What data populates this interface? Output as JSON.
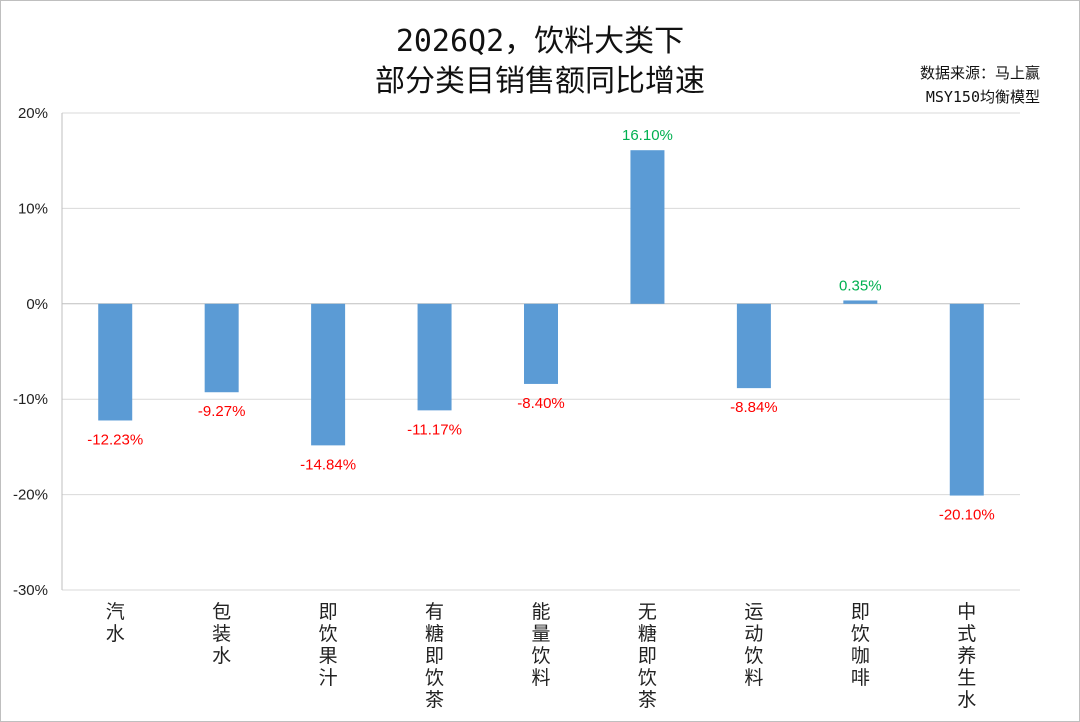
{
  "chart_data": {
    "type": "bar",
    "title_line1": "2026Q2，饮料大类下",
    "title_line2": "部分类目销售额同比增速",
    "source_line1": "数据来源：马上赢",
    "source_line2": "MSY150均衡模型",
    "categories": [
      "汽水",
      "包装水",
      "即饮果汁",
      "有糖即饮茶",
      "能量饮料",
      "无糖即饮茶",
      "运动饮料",
      "即饮咖啡",
      "中式养生水"
    ],
    "values": [
      -12.23,
      -9.27,
      -14.84,
      -11.17,
      -8.4,
      16.1,
      -8.84,
      0.35,
      -20.1
    ],
    "value_labels": [
      "-12.23%",
      "-9.27%",
      "-14.84%",
      "-11.17%",
      "-8.40%",
      "16.10%",
      "-8.84%",
      "0.35%",
      "-20.10%"
    ],
    "y_ticks": [
      "20%",
      "10%",
      "0%",
      "-10%",
      "-20%",
      "-30%"
    ],
    "ylim": [
      -30,
      20
    ],
    "grid": true,
    "colors": {
      "bar": "#5b9bd5",
      "positive_label": "#00b050",
      "negative_label": "#ff0000"
    }
  }
}
